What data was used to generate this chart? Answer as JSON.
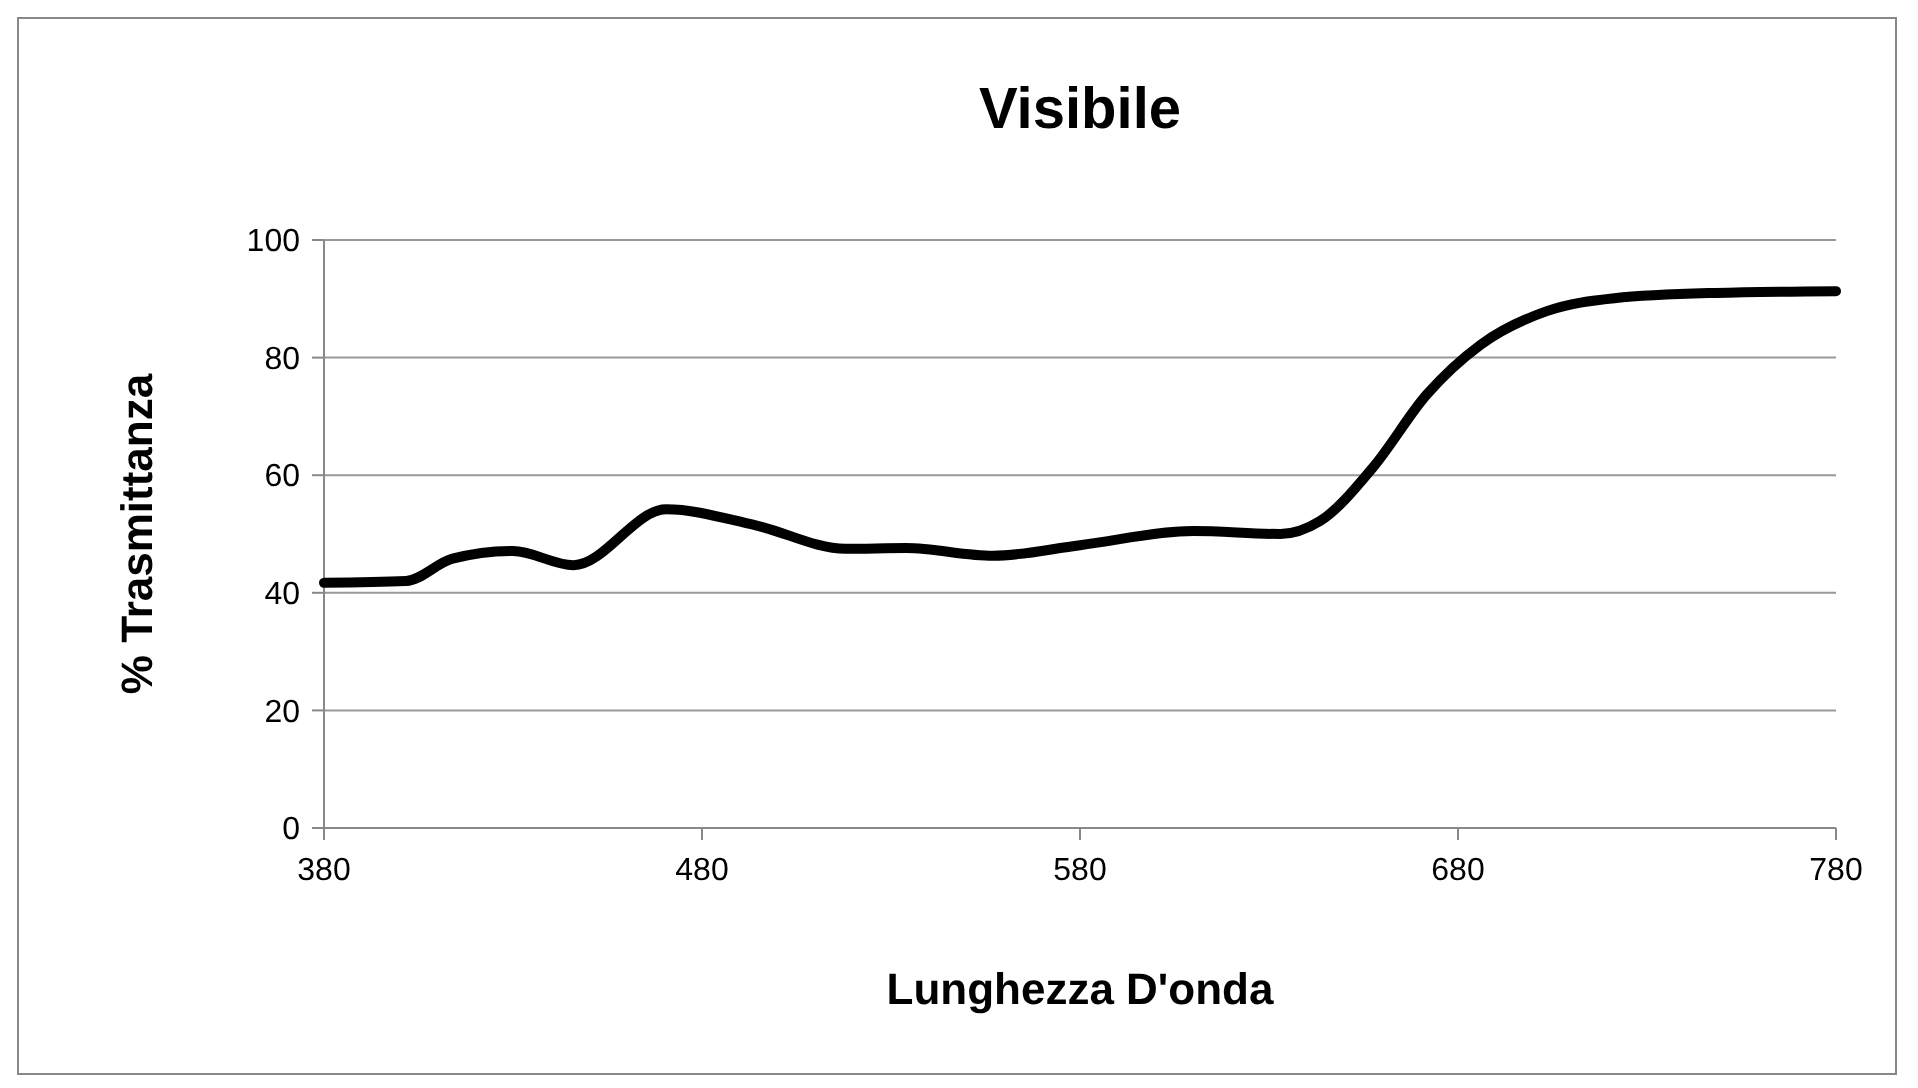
{
  "chart_data": {
    "type": "line",
    "title": "Visibile",
    "xlabel": "Lunghezza D'onda",
    "ylabel": "% Trasmittanza",
    "x": [
      380,
      401.7,
      414,
      430,
      446,
      470.5,
      494,
      518,
      534,
      557,
      580,
      610,
      633,
      643.5,
      657.6,
      671.7,
      686,
      703.5,
      721.4,
      748,
      780
    ],
    "series": [
      {
        "color": "#000000",
        "values": [
          41.7,
          42,
          45.8,
          47.1,
          44.7,
          54.2,
          51.5,
          47.5,
          47.6,
          46.3,
          48.1,
          50.5,
          50,
          52.2,
          61.4,
          73.7,
          82.2,
          87.9,
          90.1,
          91,
          91.3
        ]
      }
    ],
    "xlim": [
      380,
      780
    ],
    "xticks": [
      380,
      480,
      580,
      680,
      780
    ],
    "ylim": [
      0,
      100
    ],
    "yticks": [
      0,
      20,
      40,
      60,
      80,
      100
    ],
    "grid": "y",
    "marker": "none",
    "line_style": "solid"
  }
}
